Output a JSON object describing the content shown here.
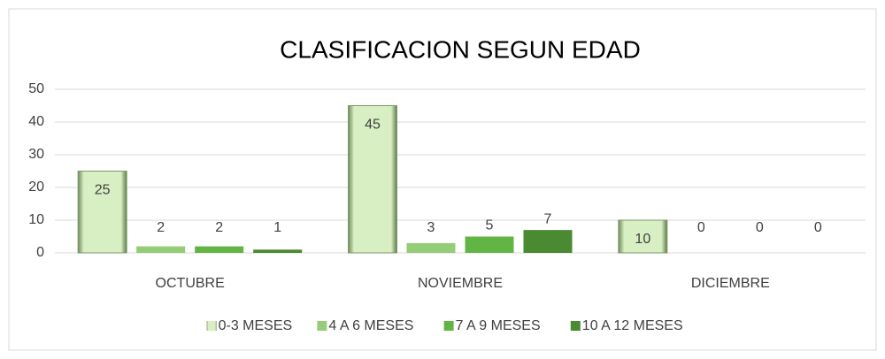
{
  "chart_data": {
    "type": "bar",
    "title": "CLASIFICACION SEGUN EDAD",
    "categories": [
      "OCTUBRE",
      "NOVIEMBRE",
      "DICIEMBRE"
    ],
    "series": [
      {
        "name": "0-3 MESES",
        "color": "#d8efc4",
        "values": [
          25,
          45,
          10
        ]
      },
      {
        "name": "4 A 6 MESES",
        "color": "#95cc78",
        "values": [
          2,
          3,
          0
        ]
      },
      {
        "name": "7 A 9 MESES",
        "color": "#62b545",
        "values": [
          2,
          5,
          0
        ]
      },
      {
        "name": "10 A 12 MESES",
        "color": "#4a8a32",
        "values": [
          1,
          7,
          0
        ]
      }
    ],
    "ylim": [
      0,
      50
    ],
    "yticks": [
      0,
      10,
      20,
      30,
      40,
      50
    ],
    "grid": true,
    "legend": "bottom"
  }
}
